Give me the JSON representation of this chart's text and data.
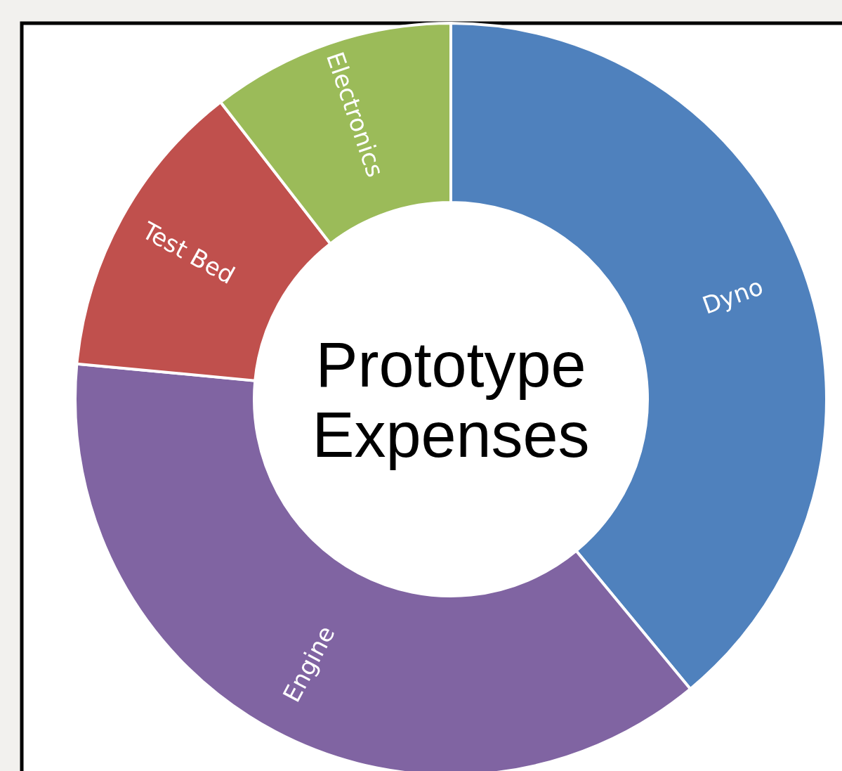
{
  "chart_data": {
    "type": "donut",
    "title": "Prototype Expenses",
    "categories": [
      "Dyno",
      "Engine",
      "Test Bed",
      "Electronics"
    ],
    "values": [
      39,
      37.5,
      13,
      10.5
    ],
    "colors": [
      "#4f81bd",
      "#8064a2",
      "#c0504d",
      "#9bbb59"
    ]
  }
}
